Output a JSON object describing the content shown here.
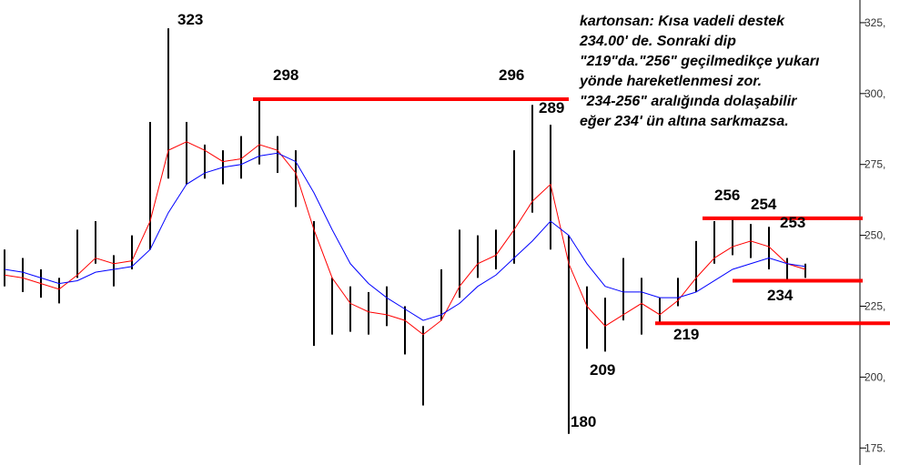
{
  "chart_data": {
    "type": "candlestick",
    "high": [
      245,
      242,
      238,
      235,
      252,
      255,
      243,
      250,
      290,
      323,
      290,
      282,
      280,
      285,
      298,
      285,
      280,
      255,
      235,
      232,
      230,
      232,
      225,
      218,
      238,
      252,
      250,
      252,
      280,
      296,
      289,
      250,
      232,
      228,
      242,
      235,
      228,
      235,
      248,
      255,
      256,
      254,
      253,
      242,
      240
    ],
    "low": [
      232,
      230,
      228,
      226,
      235,
      240,
      232,
      238,
      245,
      270,
      268,
      270,
      268,
      270,
      275,
      272,
      260,
      211,
      215,
      216,
      215,
      218,
      208,
      190,
      220,
      228,
      235,
      238,
      240,
      258,
      245,
      180,
      210,
      209,
      220,
      215,
      219,
      225,
      230,
      240,
      243,
      242,
      238,
      234,
      235
    ],
    "series": [
      {
        "color": "#ff0000",
        "values": [
          236,
          235,
          233,
          231,
          236,
          242,
          240,
          241,
          255,
          280,
          283,
          280,
          276,
          277,
          282,
          280,
          272,
          252,
          235,
          226,
          223,
          222,
          220,
          215,
          220,
          232,
          240,
          243,
          252,
          262,
          268,
          240,
          225,
          218,
          222,
          226,
          222,
          227,
          235,
          242,
          246,
          248,
          246,
          240,
          238
        ]
      },
      {
        "color": "#0000ff",
        "values": [
          238,
          237,
          235,
          233,
          234,
          237,
          238,
          239,
          245,
          258,
          268,
          272,
          274,
          275,
          278,
          279,
          276,
          265,
          252,
          240,
          233,
          228,
          224,
          220,
          222,
          226,
          232,
          236,
          242,
          248,
          255,
          250,
          240,
          232,
          230,
          230,
          228,
          228,
          230,
          234,
          238,
          240,
          242,
          240,
          239
        ]
      }
    ],
    "bar_color": "#000000",
    "ylim": [
      169,
      333
    ],
    "yticks": [
      {
        "value": 175,
        "label": "175."
      },
      {
        "value": 200,
        "label": "200,"
      },
      {
        "value": 225,
        "label": "225,"
      },
      {
        "value": 250,
        "label": "250,"
      },
      {
        "value": 275,
        "label": "275,"
      },
      {
        "value": 300,
        "label": "300,"
      },
      {
        "value": 325,
        "label": "325,"
      }
    ],
    "levels": [
      {
        "value": 298,
        "color": "#ff0000"
      },
      {
        "value": 256,
        "color": "#ff0000"
      },
      {
        "value": 234,
        "color": "#ff0000"
      },
      {
        "value": 219,
        "color": "#ff0000"
      }
    ],
    "annotations": [
      323,
      298,
      296,
      289,
      256,
      254,
      253,
      234,
      219,
      209,
      180
    ],
    "comment": [
      "kartonsan: Kısa vadeli destek",
      "234.00' de. Sonraki dip",
      "\"219\"da.\"256\" geçilmedikçe yukarı",
      "yönde hareketlenmesi zor.",
      "\"234-256\" aralığında dolaşabilir",
      "eğer 234' ün altına sarkmazsa."
    ]
  }
}
